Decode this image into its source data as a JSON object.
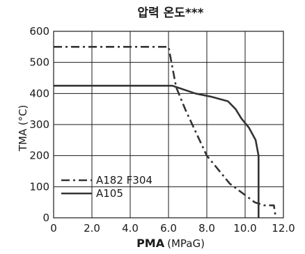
{
  "chart_data": {
    "type": "line",
    "title": "압력 온도***",
    "xlabel": "PMA",
    "xlabel_unit": "(MPaG)",
    "ylabel": "TMA (°C)",
    "xlim": [
      0,
      12
    ],
    "ylim": [
      0,
      600
    ],
    "x_ticks": [
      "0",
      "2.0",
      "4.0",
      "6.0",
      "8.0",
      "10.0",
      "12.0"
    ],
    "y_ticks": [
      "0",
      "100",
      "200",
      "300",
      "400",
      "500",
      "600"
    ],
    "grid": true,
    "legend_position": "bottom-left",
    "series": [
      {
        "name": "A182 F304",
        "style": "dash-dot",
        "color": "#333333",
        "points": [
          [
            0,
            550
          ],
          [
            6.0,
            550
          ],
          [
            6.4,
            420
          ],
          [
            6.9,
            345
          ],
          [
            8.0,
            200
          ],
          [
            9.2,
            110
          ],
          [
            10.5,
            50
          ],
          [
            11.0,
            40
          ],
          [
            11.5,
            40
          ],
          [
            11.6,
            0
          ]
        ]
      },
      {
        "name": "A105",
        "style": "solid",
        "color": "#333333",
        "points": [
          [
            0,
            425
          ],
          [
            6.2,
            425
          ],
          [
            7.4,
            400
          ],
          [
            8.2,
            390
          ],
          [
            9.1,
            375
          ],
          [
            9.5,
            350
          ],
          [
            9.8,
            320
          ],
          [
            10.2,
            290
          ],
          [
            10.55,
            250
          ],
          [
            10.7,
            200
          ],
          [
            10.7,
            0
          ]
        ]
      }
    ]
  }
}
